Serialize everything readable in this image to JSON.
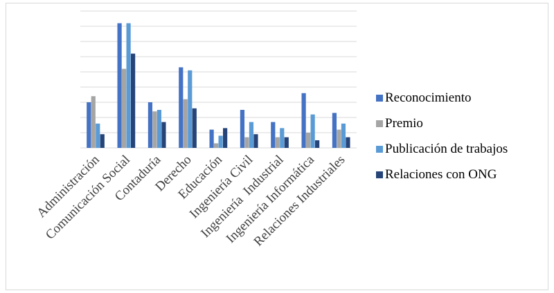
{
  "chart_data": {
    "type": "bar",
    "title": "",
    "xlabel": "",
    "ylabel": "",
    "ylim": [
      0,
      9
    ],
    "gridlines": 9,
    "grid": true,
    "legend_position": "right",
    "categories": [
      "Administración",
      "Comunicación Social",
      "Contaduría",
      "Derecho",
      "Educación",
      "Ingeniería Civil",
      "Ingeniería  Industrial",
      "Ingeniería Informática",
      "Relaciones Industriales"
    ],
    "series": [
      {
        "name": "Reconocimiento",
        "color": "#4472c4",
        "values": [
          3.0,
          8.2,
          3.0,
          5.3,
          1.2,
          2.5,
          1.7,
          3.6,
          2.3
        ]
      },
      {
        "name": "Premio",
        "color": "#a5a5a5",
        "values": [
          3.4,
          5.2,
          2.4,
          3.2,
          0.3,
          0.7,
          0.7,
          1.0,
          1.2
        ]
      },
      {
        "name": "Publicación de trabajos",
        "color": "#5b9bd5",
        "values": [
          1.6,
          8.2,
          2.5,
          5.1,
          0.8,
          1.7,
          1.3,
          2.2,
          1.6
        ]
      },
      {
        "name": "Relaciones con ONG",
        "color": "#264478",
        "values": [
          0.9,
          6.2,
          1.7,
          2.6,
          1.3,
          0.9,
          0.7,
          0.5,
          0.7
        ]
      }
    ]
  }
}
